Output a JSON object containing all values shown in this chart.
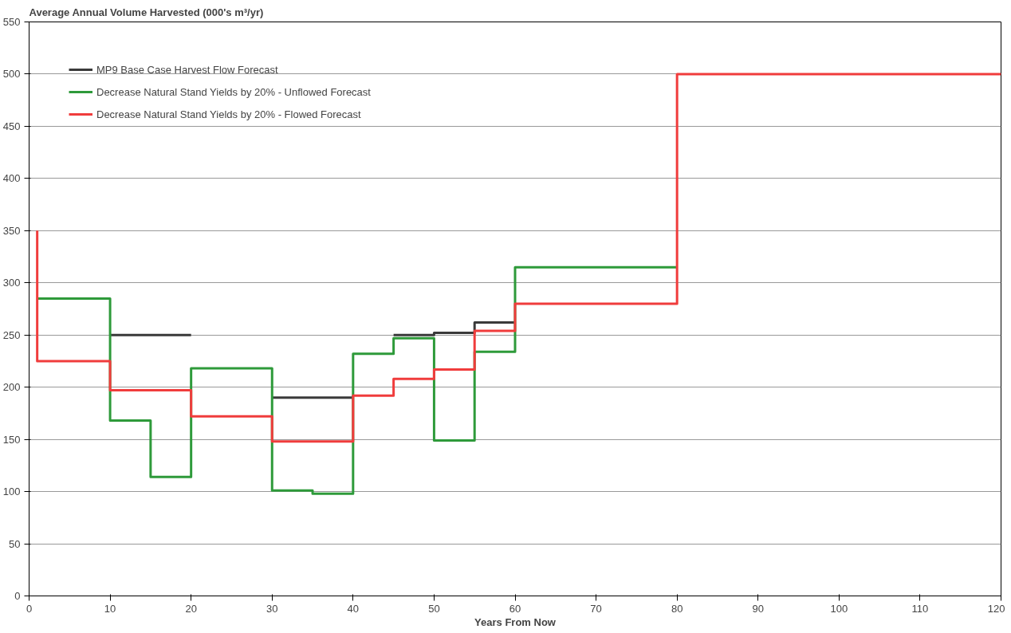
{
  "chart_data": {
    "type": "step",
    "title": "Average Annual Volume Harvested (000's m³/yr)",
    "xlabel": "Years From Now",
    "xlim": [
      0,
      120
    ],
    "xticks": [
      0,
      10,
      20,
      30,
      40,
      50,
      60,
      70,
      80,
      90,
      100,
      110,
      120
    ],
    "ylim": [
      0,
      550
    ],
    "yticks": [
      0,
      50,
      100,
      150,
      200,
      250,
      300,
      350,
      400,
      450,
      500,
      550
    ],
    "grid": "y",
    "legend": "top left",
    "line_style": "solid",
    "marker": "none",
    "series": [
      {
        "name": "MP9 Base Case Harvest Flow Forecast",
        "color": "#3a3a3a",
        "x": [
          10,
          20,
          30,
          40,
          45,
          50,
          55,
          60
        ],
        "values": [
          250,
          null,
          190,
          null,
          250,
          252,
          262,
          262
        ]
      },
      {
        "name": "Decrease Natural Stand Yields by 20% - Unflowed Forecast",
        "color": "#2e9a3a",
        "x": [
          1,
          10,
          15,
          20,
          30,
          35,
          40,
          45,
          50,
          55,
          60,
          80
        ],
        "values": [
          285,
          168,
          114,
          218,
          101,
          98,
          232,
          247,
          149,
          234,
          315,
          315
        ]
      },
      {
        "name": "Decrease Natural Stand Yields by 20% - Flowed Forecast",
        "color": "#f03c3c",
        "x": [
          1,
          1,
          10,
          20,
          30,
          40,
          45,
          50,
          55,
          60,
          80,
          120
        ],
        "values": [
          350,
          225,
          197,
          172,
          148,
          192,
          208,
          217,
          254,
          280,
          500,
          500
        ]
      }
    ]
  }
}
